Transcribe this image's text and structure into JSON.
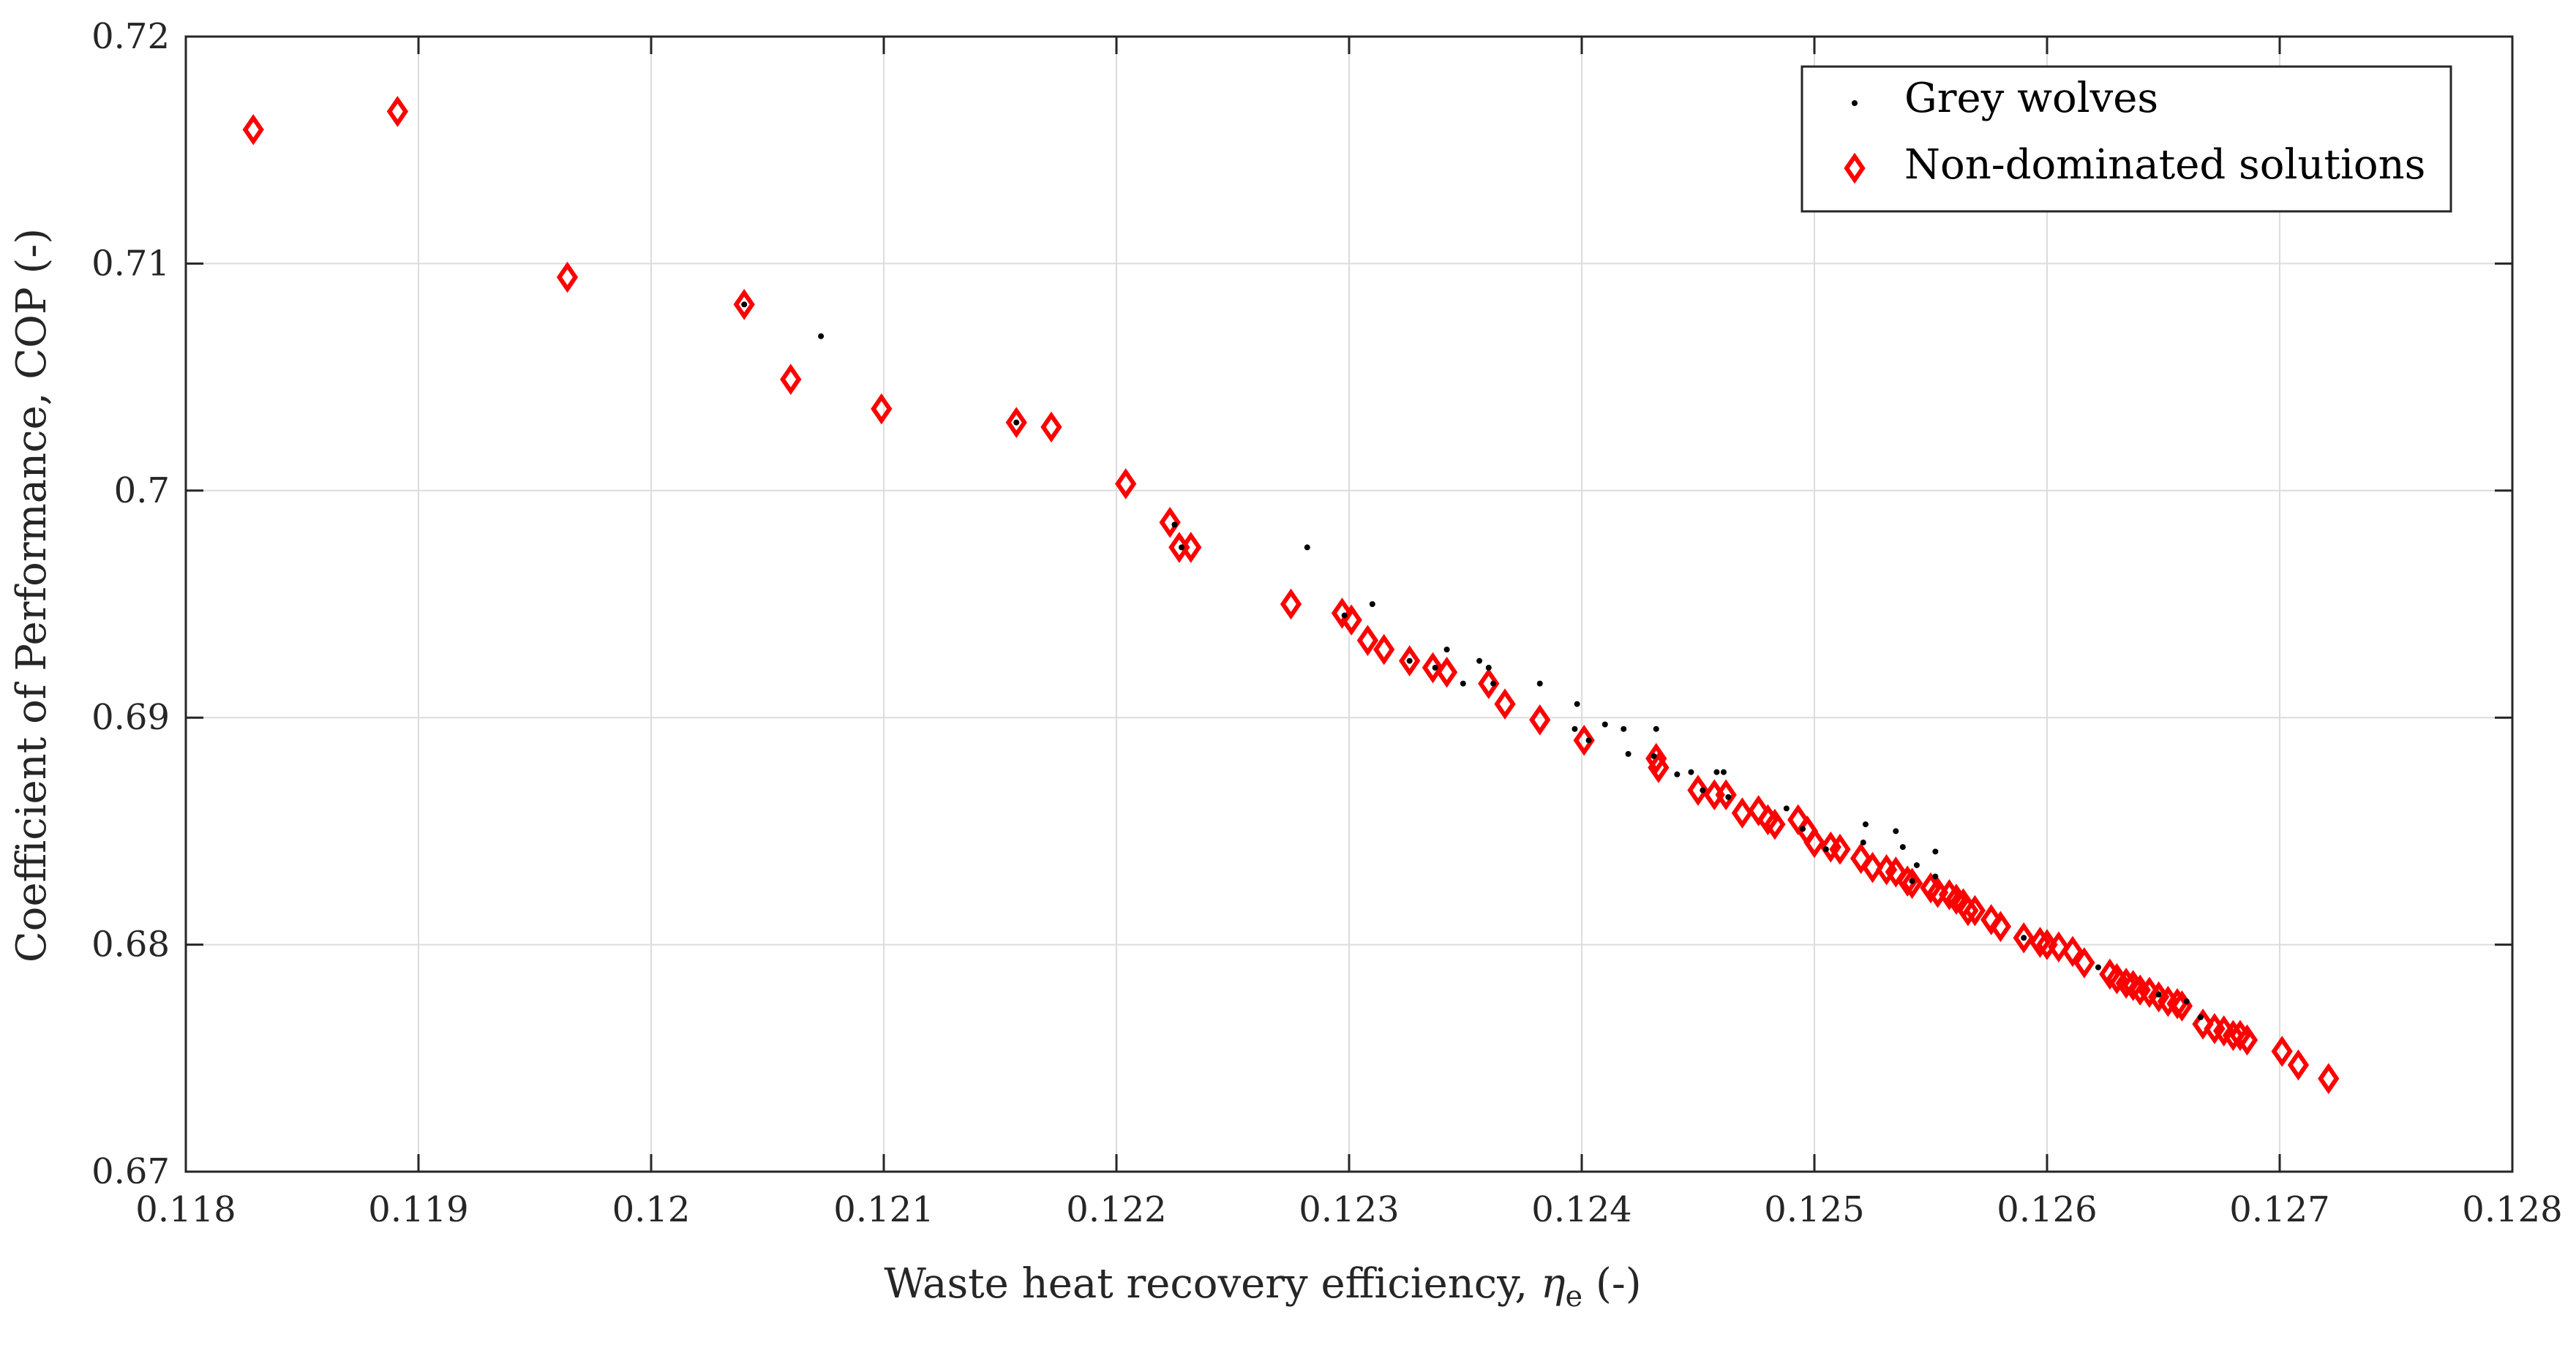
{
  "colors": {
    "wolves": "#000000",
    "nondominated": "#ff0000",
    "grid": "#dcdcdc",
    "axis": "#262626"
  },
  "chart_data": {
    "type": "scatter",
    "xlabel_prefix": "Waste heat recovery efficiency, ",
    "xlabel_symbol": "η",
    "xlabel_subscript": "e",
    "xlabel_suffix": " (-)",
    "ylabel": "Coefficient of Performance, COP (-)",
    "xlim": [
      0.118,
      0.128
    ],
    "ylim": [
      0.67,
      0.72
    ],
    "x_ticks": [
      0.118,
      0.119,
      0.12,
      0.121,
      0.122,
      0.123,
      0.124,
      0.125,
      0.126,
      0.127,
      0.128
    ],
    "x_tick_labels": [
      "0.118",
      "0.119",
      "0.12",
      "0.121",
      "0.122",
      "0.123",
      "0.124",
      "0.125",
      "0.126",
      "0.127",
      "0.128"
    ],
    "y_ticks": [
      0.67,
      0.68,
      0.69,
      0.7,
      0.71,
      0.72
    ],
    "y_tick_labels": [
      "0.67",
      "0.68",
      "0.69",
      "0.7",
      "0.71",
      "0.72"
    ],
    "grid": true,
    "legend_position": "top-right",
    "series": [
      {
        "name": "Grey wolves",
        "marker": "dot",
        "points": [
          [
            0.1204,
            0.7082
          ],
          [
            0.12073,
            0.7068
          ],
          [
            0.12157,
            0.703
          ],
          [
            0.12225,
            0.6985
          ],
          [
            0.12228,
            0.6975
          ],
          [
            0.12282,
            0.6975
          ],
          [
            0.12298,
            0.6945
          ],
          [
            0.1231,
            0.695
          ],
          [
            0.12326,
            0.6925
          ],
          [
            0.12342,
            0.693
          ],
          [
            0.12337,
            0.6922
          ],
          [
            0.12349,
            0.6915
          ],
          [
            0.12356,
            0.6925
          ],
          [
            0.1236,
            0.6922
          ],
          [
            0.12362,
            0.6915
          ],
          [
            0.12382,
            0.6915
          ],
          [
            0.12398,
            0.6906
          ],
          [
            0.12397,
            0.6895
          ],
          [
            0.1241,
            0.6897
          ],
          [
            0.1242,
            0.6884
          ],
          [
            0.12418,
            0.6895
          ],
          [
            0.12403,
            0.689
          ],
          [
            0.12432,
            0.6895
          ],
          [
            0.12431,
            0.6883
          ],
          [
            0.12441,
            0.6875
          ],
          [
            0.12447,
            0.6876
          ],
          [
            0.12452,
            0.6868
          ],
          [
            0.12458,
            0.6876
          ],
          [
            0.12461,
            0.6876
          ],
          [
            0.12463,
            0.6865
          ],
          [
            0.12488,
            0.686
          ],
          [
            0.12495,
            0.6851
          ],
          [
            0.12505,
            0.6842
          ],
          [
            0.12522,
            0.6853
          ],
          [
            0.12521,
            0.6845
          ],
          [
            0.12535,
            0.685
          ],
          [
            0.12538,
            0.6843
          ],
          [
            0.12544,
            0.6835
          ],
          [
            0.12552,
            0.6841
          ],
          [
            0.12552,
            0.683
          ],
          [
            0.12542,
            0.6828
          ],
          [
            0.1259,
            0.6803
          ],
          [
            0.12622,
            0.679
          ],
          [
            0.12648,
            0.6778
          ],
          [
            0.1266,
            0.6775
          ],
          [
            0.12666,
            0.6768
          ]
        ]
      },
      {
        "name": "Non-dominated solutions",
        "marker": "diamond",
        "points": [
          [
            0.11829,
            0.7159
          ],
          [
            0.11891,
            0.7167
          ],
          [
            0.11964,
            0.7094
          ],
          [
            0.1204,
            0.7082
          ],
          [
            0.1206,
            0.7049
          ],
          [
            0.12099,
            0.7036
          ],
          [
            0.12157,
            0.703
          ],
          [
            0.12172,
            0.7028
          ],
          [
            0.12204,
            0.7003
          ],
          [
            0.12223,
            0.6986
          ],
          [
            0.12227,
            0.6975
          ],
          [
            0.12232,
            0.6975
          ],
          [
            0.12275,
            0.695
          ],
          [
            0.12297,
            0.6946
          ],
          [
            0.12301,
            0.6943
          ],
          [
            0.12308,
            0.6934
          ],
          [
            0.12315,
            0.693
          ],
          [
            0.12326,
            0.6925
          ],
          [
            0.12336,
            0.6922
          ],
          [
            0.12342,
            0.692
          ],
          [
            0.1236,
            0.6915
          ],
          [
            0.12367,
            0.6906
          ],
          [
            0.12382,
            0.6899
          ],
          [
            0.12401,
            0.689
          ],
          [
            0.12432,
            0.6882
          ],
          [
            0.12433,
            0.6878
          ],
          [
            0.1245,
            0.6868
          ],
          [
            0.12457,
            0.6866
          ],
          [
            0.12462,
            0.6866
          ],
          [
            0.12469,
            0.6858
          ],
          [
            0.12476,
            0.6859
          ],
          [
            0.1248,
            0.6855
          ],
          [
            0.12483,
            0.6853
          ],
          [
            0.12493,
            0.6855
          ],
          [
            0.12497,
            0.685
          ],
          [
            0.125,
            0.6845
          ],
          [
            0.12507,
            0.6843
          ],
          [
            0.12511,
            0.6842
          ],
          [
            0.1252,
            0.6838
          ],
          [
            0.12525,
            0.6834
          ],
          [
            0.12531,
            0.6833
          ],
          [
            0.12535,
            0.6832
          ],
          [
            0.1254,
            0.6828
          ],
          [
            0.12542,
            0.6827
          ],
          [
            0.1255,
            0.6825
          ],
          [
            0.12553,
            0.6823
          ],
          [
            0.12558,
            0.6822
          ],
          [
            0.12561,
            0.682
          ],
          [
            0.12564,
            0.6818
          ],
          [
            0.12566,
            0.6815
          ],
          [
            0.12569,
            0.6815
          ],
          [
            0.12576,
            0.6811
          ],
          [
            0.1258,
            0.6808
          ],
          [
            0.1259,
            0.6803
          ],
          [
            0.12597,
            0.6801
          ],
          [
            0.126,
            0.68
          ],
          [
            0.12605,
            0.6799
          ],
          [
            0.12611,
            0.6797
          ],
          [
            0.12616,
            0.6792
          ],
          [
            0.12627,
            0.6787
          ],
          [
            0.1263,
            0.6785
          ],
          [
            0.12634,
            0.6783
          ],
          [
            0.12637,
            0.6782
          ],
          [
            0.1264,
            0.678
          ],
          [
            0.12644,
            0.6779
          ],
          [
            0.12648,
            0.6777
          ],
          [
            0.12652,
            0.6775
          ],
          [
            0.12656,
            0.6774
          ],
          [
            0.12658,
            0.6773
          ],
          [
            0.12667,
            0.6765
          ],
          [
            0.12672,
            0.6763
          ],
          [
            0.12676,
            0.6762
          ],
          [
            0.1268,
            0.676
          ],
          [
            0.12683,
            0.676
          ],
          [
            0.12686,
            0.6758
          ],
          [
            0.12701,
            0.6753
          ],
          [
            0.12708,
            0.6747
          ],
          [
            0.12721,
            0.6741
          ]
        ]
      }
    ]
  }
}
